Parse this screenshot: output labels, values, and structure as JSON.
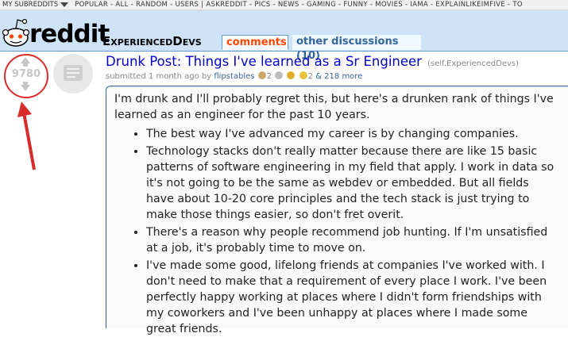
{
  "topbar": {
    "my_subreddits": "MY SUBREDDITS",
    "links": "POPULAR - ALL - RANDOM - USERS  |  ASKREDDIT - PICS - NEWS - GAMING - FUNNY - MOVIES - IAMA - EXPLAINLIKEIMFIVE - TO"
  },
  "header": {
    "wordmark": "reddit",
    "subreddit": "ExperiencedDevs",
    "tabs": [
      {
        "label": "comments",
        "active": true
      },
      {
        "label": "other discussions (10)",
        "active": false
      }
    ]
  },
  "post": {
    "score": "9780",
    "title": "Drunk Post: Things I've learned as a Sr Engineer",
    "domain": "(self.ExperiencedDevs)",
    "tagline": {
      "prefix": "submitted 1 month ago by",
      "author": "flipstables",
      "award_count_1": "2",
      "award_count_2": "2",
      "more": "& 218 more"
    },
    "intro": "I'm drunk and I'll probably regret this, but here's a drunken rank of things I've learned as an engineer for the past 10 years.",
    "bullets": [
      "The best way I've advanced my career is by changing companies.",
      "Technology stacks don't really matter because there are like 15 basic patterns of software engineering in my field that apply. I work in data so it's not going to be the same as webdev or embedded. But all fields have about 10-20 core principles and the tech stack is just trying to make those things easier, so don't fret overit.",
      "There's a reason why people recommend job hunting. If I'm unsatisfied at a job, it's probably time to move on.",
      "I've made some good, lifelong friends at companies I've worked with. I don't need to make that a requirement of every place I work. I've been perfectly happy working at places where I didn't form friendships with my coworkers and I've been unhappy at places where I made some great friends."
    ]
  },
  "colors": {
    "header_bg": "#cee3f8",
    "link_blue": "#0000cc",
    "active_tab": "#ff4500",
    "annotation_red": "#d82c2c"
  },
  "icons": [
    "dropdown-caret-icon",
    "snoo-logo-icon",
    "upvote-icon",
    "downvote-icon",
    "self-post-thumbnail-icon",
    "award-icon",
    "annotation-arrow-icon"
  ]
}
